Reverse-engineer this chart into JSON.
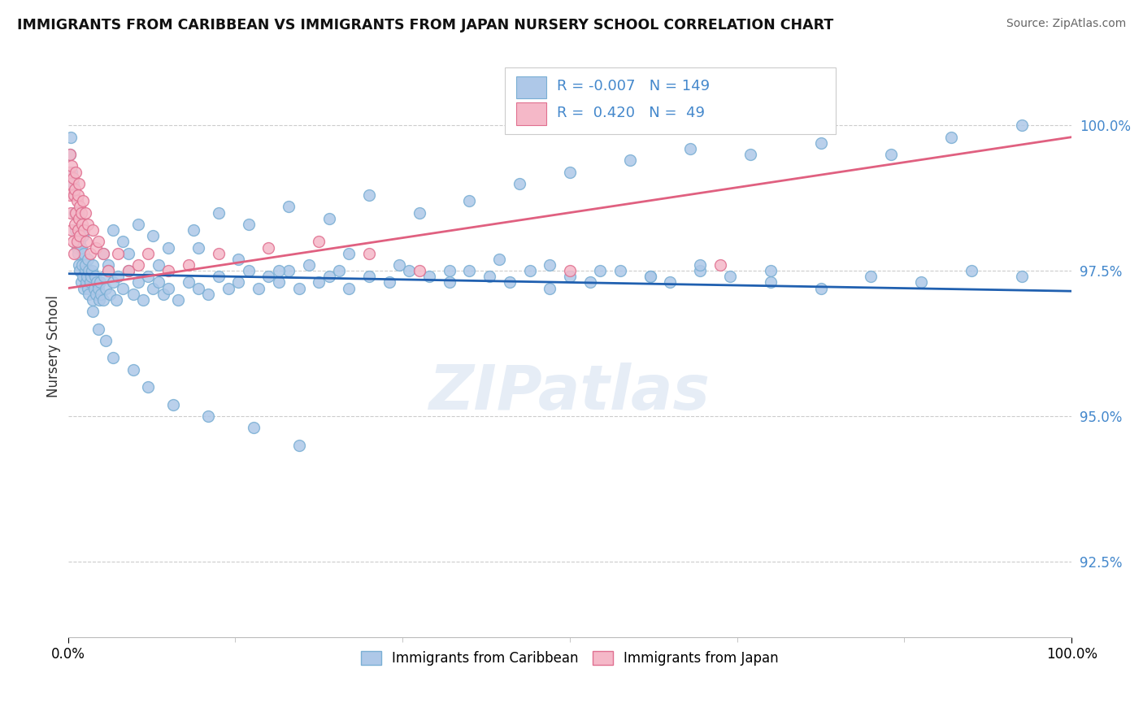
{
  "title": "IMMIGRANTS FROM CARIBBEAN VS IMMIGRANTS FROM JAPAN NURSERY SCHOOL CORRELATION CHART",
  "source": "Source: ZipAtlas.com",
  "ylabel": "Nursery School",
  "y_tick_values": [
    92.5,
    95.0,
    97.5,
    100.0
  ],
  "xlim": [
    0.0,
    100.0
  ],
  "ylim": [
    91.2,
    101.2
  ],
  "blue_color": "#aec8e8",
  "pink_color": "#f5b8c8",
  "blue_edge": "#7aafd4",
  "pink_edge": "#e07090",
  "trend_blue": "#2060b0",
  "trend_pink": "#e06080",
  "grid_color": "#cccccc",
  "label_color": "#4488cc",
  "legend_R_blue": "-0.007",
  "legend_N_blue": "149",
  "legend_R_pink": "0.420",
  "legend_N_pink": "49",
  "watermark": "ZIPatlas",
  "blue_x": [
    0.2,
    0.3,
    0.4,
    0.5,
    0.6,
    0.7,
    0.8,
    0.9,
    1.0,
    1.0,
    1.1,
    1.1,
    1.2,
    1.2,
    1.3,
    1.3,
    1.4,
    1.5,
    1.5,
    1.6,
    1.6,
    1.7,
    1.7,
    1.8,
    1.9,
    2.0,
    2.0,
    2.1,
    2.1,
    2.2,
    2.3,
    2.4,
    2.5,
    2.5,
    2.6,
    2.7,
    2.8,
    2.9,
    3.0,
    3.1,
    3.2,
    3.3,
    3.5,
    3.6,
    3.8,
    4.0,
    4.2,
    4.5,
    4.8,
    5.0,
    5.5,
    6.0,
    6.5,
    7.0,
    7.5,
    8.0,
    8.5,
    9.0,
    9.5,
    10.0,
    11.0,
    12.0,
    13.0,
    14.0,
    15.0,
    16.0,
    17.0,
    18.0,
    19.0,
    20.0,
    21.0,
    22.0,
    23.0,
    24.0,
    25.0,
    26.0,
    27.0,
    28.0,
    30.0,
    32.0,
    34.0,
    36.0,
    38.0,
    40.0,
    42.0,
    44.0,
    46.0,
    48.0,
    50.0,
    52.0,
    55.0,
    58.0,
    60.0,
    63.0,
    66.0,
    70.0,
    75.0,
    80.0,
    85.0,
    90.0,
    95.0
  ],
  "blue_y": [
    99.5,
    99.8,
    99.2,
    99.0,
    98.8,
    98.5,
    98.2,
    97.9,
    97.8,
    98.5,
    97.6,
    98.2,
    97.5,
    98.0,
    97.3,
    97.9,
    97.6,
    97.4,
    98.1,
    97.2,
    97.8,
    97.5,
    97.6,
    97.3,
    97.4,
    97.2,
    97.7,
    97.5,
    97.1,
    97.3,
    97.4,
    97.5,
    97.0,
    97.6,
    97.2,
    97.4,
    97.1,
    97.3,
    97.2,
    97.0,
    97.3,
    97.1,
    97.0,
    97.4,
    97.2,
    97.6,
    97.1,
    97.3,
    97.0,
    97.4,
    97.2,
    97.5,
    97.1,
    97.3,
    97.0,
    97.4,
    97.2,
    97.3,
    97.1,
    97.2,
    97.0,
    97.3,
    97.2,
    97.1,
    97.4,
    97.2,
    97.3,
    97.5,
    97.2,
    97.4,
    97.3,
    97.5,
    97.2,
    97.6,
    97.3,
    97.4,
    97.5,
    97.2,
    97.4,
    97.3,
    97.5,
    97.4,
    97.3,
    97.5,
    97.4,
    97.3,
    97.5,
    97.2,
    97.4,
    97.3,
    97.5,
    97.4,
    97.3,
    97.5,
    97.4,
    97.3,
    97.2,
    97.4,
    97.3,
    97.5,
    97.4
  ],
  "blue_x2": [
    3.5,
    4.5,
    5.5,
    7.0,
    8.5,
    10.0,
    12.5,
    15.0,
    18.0,
    22.0,
    26.0,
    30.0,
    35.0,
    40.0,
    45.0,
    50.0,
    56.0,
    62.0,
    68.0,
    75.0,
    82.0,
    88.0,
    95.0,
    4.0,
    6.0,
    9.0,
    13.0,
    17.0,
    21.0,
    28.0,
    33.0,
    38.0,
    43.0,
    48.0,
    53.0,
    58.0,
    63.0,
    70.0,
    2.5,
    3.0,
    3.8,
    4.5,
    6.5,
    8.0,
    10.5,
    14.0,
    18.5,
    23.0
  ],
  "blue_y2": [
    97.8,
    98.2,
    98.0,
    98.3,
    98.1,
    97.9,
    98.2,
    98.5,
    98.3,
    98.6,
    98.4,
    98.8,
    98.5,
    98.7,
    99.0,
    99.2,
    99.4,
    99.6,
    99.5,
    99.7,
    99.5,
    99.8,
    100.0,
    97.5,
    97.8,
    97.6,
    97.9,
    97.7,
    97.5,
    97.8,
    97.6,
    97.5,
    97.7,
    97.6,
    97.5,
    97.4,
    97.6,
    97.5,
    96.8,
    96.5,
    96.3,
    96.0,
    95.8,
    95.5,
    95.2,
    95.0,
    94.8,
    94.5
  ],
  "pink_x": [
    0.1,
    0.2,
    0.2,
    0.3,
    0.3,
    0.4,
    0.4,
    0.5,
    0.5,
    0.6,
    0.6,
    0.7,
    0.7,
    0.8,
    0.8,
    0.9,
    0.9,
    1.0,
    1.0,
    1.1,
    1.1,
    1.2,
    1.2,
    1.3,
    1.4,
    1.5,
    1.6,
    1.7,
    1.8,
    2.0,
    2.2,
    2.5,
    2.8,
    3.0,
    3.5,
    4.0,
    5.0,
    6.0,
    7.0,
    8.0,
    10.0,
    12.0,
    15.0,
    20.0,
    25.0,
    30.0,
    35.0,
    50.0,
    65.0
  ],
  "pink_y": [
    99.2,
    99.5,
    98.8,
    99.0,
    98.5,
    99.3,
    98.2,
    99.1,
    98.0,
    98.8,
    97.8,
    98.9,
    98.3,
    99.2,
    98.5,
    98.7,
    98.0,
    98.8,
    98.2,
    99.0,
    98.4,
    98.6,
    98.1,
    98.5,
    98.3,
    98.7,
    98.2,
    98.5,
    98.0,
    98.3,
    97.8,
    98.2,
    97.9,
    98.0,
    97.8,
    97.5,
    97.8,
    97.5,
    97.6,
    97.8,
    97.5,
    97.6,
    97.8,
    97.9,
    98.0,
    97.8,
    97.5,
    97.5,
    97.6
  ],
  "blue_trend_slope": -0.003,
  "blue_trend_intercept": 97.45,
  "pink_trend_x0": 0.0,
  "pink_trend_y0": 97.2,
  "pink_trend_x1": 100.0,
  "pink_trend_y1": 99.8
}
